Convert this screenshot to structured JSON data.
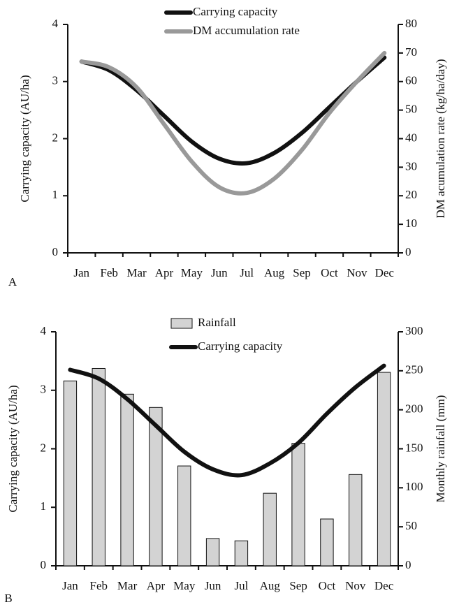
{
  "chart_data": [
    {
      "type": "line",
      "panel_label": "A",
      "categories": [
        "Jan",
        "Feb",
        "Mar",
        "Apr",
        "May",
        "Jun",
        "Jul",
        "Aug",
        "Sep",
        "Oct",
        "Nov",
        "Dec"
      ],
      "y_label": "Carrying capacity (AU/ha)",
      "y2_label": "DM acumulation rate (kg/ha/day)",
      "ylim": [
        0,
        4
      ],
      "yticks": [
        0,
        1,
        2,
        3,
        4
      ],
      "y2lim": [
        0,
        80
      ],
      "y2ticks": [
        0,
        10,
        20,
        30,
        40,
        50,
        60,
        70,
        80
      ],
      "legend": "top",
      "series": [
        {
          "name": "Carrying capacity",
          "type": "line",
          "color": "#111111",
          "values": [
            3.35,
            3.2,
            2.85,
            2.4,
            1.95,
            1.65,
            1.57,
            1.75,
            2.1,
            2.55,
            3.0,
            3.42
          ]
        },
        {
          "name": "DM accumulation rate",
          "type": "line",
          "axis": "y2",
          "color": "#999999",
          "values": [
            67,
            65,
            58,
            45,
            32,
            23,
            21,
            26,
            36,
            49,
            60,
            70
          ]
        }
      ]
    },
    {
      "type": "bar",
      "panel_label": "B",
      "categories": [
        "Jan",
        "Feb",
        "Mar",
        "Apr",
        "May",
        "Jun",
        "Jul",
        "Aug",
        "Sep",
        "Oct",
        "Nov",
        "Dec"
      ],
      "y_label": "Carrying capacity (AU/ha)",
      "y2_label": "Monthly rainfall (mm)",
      "ylim": [
        0,
        4
      ],
      "yticks": [
        0,
        1,
        2,
        3,
        4
      ],
      "y2lim": [
        0,
        300
      ],
      "y2ticks": [
        0,
        50,
        100,
        150,
        200,
        250,
        300
      ],
      "legend": "top",
      "series": [
        {
          "name": "Rainfall",
          "type": "bar",
          "axis": "y2",
          "color": "#d3d3d3",
          "values": [
            237,
            253,
            220,
            203,
            128,
            35,
            32,
            93,
            157,
            60,
            117,
            248
          ]
        },
        {
          "name": "Carrying capacity",
          "type": "line",
          "color": "#111111",
          "values": [
            3.35,
            3.2,
            2.85,
            2.4,
            1.95,
            1.65,
            1.55,
            1.75,
            2.1,
            2.6,
            3.05,
            3.42
          ]
        }
      ]
    }
  ]
}
